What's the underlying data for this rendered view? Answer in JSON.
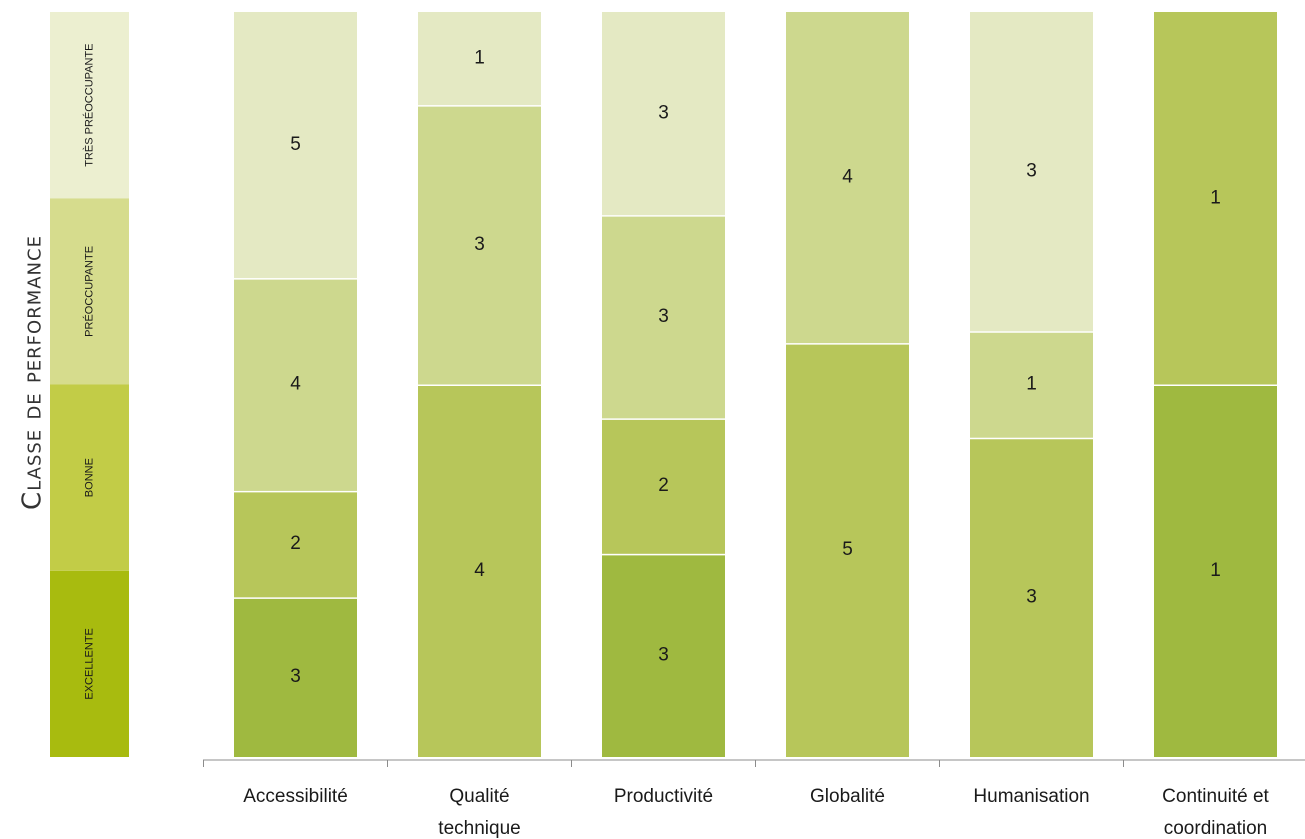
{
  "chart_data": {
    "type": "bar",
    "stacked": true,
    "ylabel": "Classe de performance",
    "performance_classes": [
      {
        "key": "excellente",
        "label": "EXCELLENTE",
        "color": "#a8bb0f"
      },
      {
        "key": "bonne",
        "label": "BONNE",
        "color": "#c2cc47"
      },
      {
        "key": "preoccupante",
        "label": "PRÉOCCUPANTE",
        "color": "#d6dc8d"
      },
      {
        "key": "tres_preoccupante",
        "label": "TRÈS PRÉOCCUPANTE",
        "color": "#ecefd0"
      }
    ],
    "categories": [
      {
        "lines": [
          "Accessibilité"
        ]
      },
      {
        "lines": [
          "Qualité",
          "technique"
        ]
      },
      {
        "lines": [
          "Productivité"
        ]
      },
      {
        "lines": [
          "Globalité"
        ]
      },
      {
        "lines": [
          "Humanisation"
        ]
      },
      {
        "lines": [
          "Continuité et",
          "coordination"
        ]
      }
    ],
    "series": [
      {
        "key": "excellente",
        "color": "#9fb940",
        "values": [
          3,
          0,
          3,
          0,
          0,
          1
        ]
      },
      {
        "key": "bonne",
        "color": "#b7c65a",
        "values": [
          2,
          4,
          2,
          5,
          3,
          1
        ]
      },
      {
        "key": "preoccupante",
        "color": "#cdd88e",
        "values": [
          4,
          3,
          3,
          4,
          1,
          0
        ]
      },
      {
        "key": "tres_preoccupante",
        "color": "#e4e9c3",
        "values": [
          5,
          1,
          3,
          0,
          3,
          0
        ]
      }
    ],
    "normalized": true
  }
}
